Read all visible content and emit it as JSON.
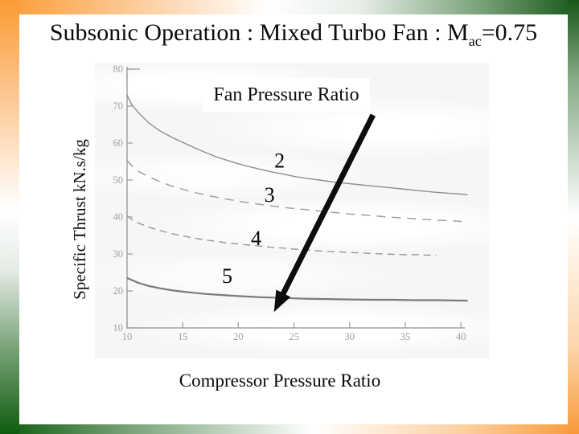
{
  "slide": {
    "title": {
      "text_before_sub": "Subsonic Operation : Mixed Turbo Fan : M",
      "subscript": "ac",
      "text_after_sub": "=0.75"
    },
    "theme": {
      "accent_orange": "#fa9b33",
      "accent_green": "#135c13",
      "scan_background": "#f6f6f6",
      "scan_ink": "#8e8e8e"
    }
  },
  "chart_data": {
    "type": "line",
    "series_family_label": "Fan Pressure Ratio",
    "xlabel": "Compressor Pressure Ratio",
    "ylabel": "Specific Thrust kN.s/kg",
    "xlim": [
      10,
      40
    ],
    "ylim": [
      10,
      80
    ],
    "x_ticks": [
      10,
      15,
      20,
      25,
      30,
      35,
      40
    ],
    "y_ticks": [
      10,
      20,
      30,
      40,
      50,
      60,
      70,
      80
    ],
    "grid": false,
    "legend_position": "labels-on-plot",
    "series": [
      {
        "name": "2",
        "line_style": "solid",
        "label_anchor": [
          23.7,
          55.3
        ],
        "points": [
          [
            10,
            73
          ],
          [
            10.4,
            70.5
          ],
          [
            11,
            68.3
          ],
          [
            12,
            65.3
          ],
          [
            13,
            63.2
          ],
          [
            14,
            61.6
          ],
          [
            15,
            60.2
          ],
          [
            16,
            58.8
          ],
          [
            17,
            57.5
          ],
          [
            18,
            56.3
          ],
          [
            19,
            55.3
          ],
          [
            20,
            54.4
          ],
          [
            21,
            53.6
          ],
          [
            22,
            52.9
          ],
          [
            23,
            52.2
          ],
          [
            24,
            51.6
          ],
          [
            25,
            51.0
          ],
          [
            26,
            50.5
          ],
          [
            27,
            50.1
          ],
          [
            28,
            49.7
          ],
          [
            29,
            49.3
          ],
          [
            30,
            49.0
          ],
          [
            31,
            48.7
          ],
          [
            32,
            48.4
          ],
          [
            33,
            48.1
          ],
          [
            34,
            47.8
          ],
          [
            35,
            47.5
          ],
          [
            36,
            47.2
          ],
          [
            37,
            46.9
          ],
          [
            38,
            46.6
          ],
          [
            39,
            46.4
          ],
          [
            40,
            46.2
          ],
          [
            40.6,
            46.0
          ]
        ]
      },
      {
        "name": "3",
        "line_style": "dashed",
        "label_anchor": [
          22.8,
          46.1
        ],
        "points": [
          [
            10,
            55.3
          ],
          [
            10.5,
            53.6
          ],
          [
            11,
            52.4
          ],
          [
            12,
            50.8
          ],
          [
            13,
            49.5
          ],
          [
            14,
            48.4
          ],
          [
            15,
            47.5
          ],
          [
            16,
            46.7
          ],
          [
            17,
            46.0
          ],
          [
            18,
            45.4
          ],
          [
            19,
            44.8
          ],
          [
            20,
            44.3
          ],
          [
            21,
            43.8
          ],
          [
            22,
            43.4
          ],
          [
            23,
            43.0
          ],
          [
            24,
            42.6
          ],
          [
            25,
            42.3
          ],
          [
            26,
            42.0
          ],
          [
            27,
            41.7
          ],
          [
            28,
            41.4
          ],
          [
            29,
            41.1
          ],
          [
            30,
            40.8
          ],
          [
            31,
            40.6
          ],
          [
            32,
            40.4
          ],
          [
            33,
            40.1
          ],
          [
            34,
            39.9
          ],
          [
            35,
            39.7
          ],
          [
            36,
            39.5
          ],
          [
            37,
            39.3
          ],
          [
            38,
            39.1
          ],
          [
            39,
            39.0
          ],
          [
            40,
            38.8
          ],
          [
            40.6,
            38.7
          ]
        ]
      },
      {
        "name": "4",
        "line_style": "dashed",
        "label_anchor": [
          21.6,
          34.3
        ],
        "points": [
          [
            10,
            40.3
          ],
          [
            10.5,
            39.2
          ],
          [
            11,
            38.4
          ],
          [
            12,
            37.2
          ],
          [
            13,
            36.3
          ],
          [
            14,
            35.5
          ],
          [
            15,
            34.9
          ],
          [
            16,
            34.3
          ],
          [
            17,
            33.8
          ],
          [
            18,
            33.4
          ],
          [
            19,
            33.0
          ],
          [
            20,
            32.7
          ],
          [
            21,
            32.4
          ],
          [
            22,
            32.1
          ],
          [
            23,
            31.8
          ],
          [
            24,
            31.6
          ],
          [
            25,
            31.3
          ],
          [
            26,
            31.1
          ],
          [
            27,
            30.9
          ],
          [
            28,
            30.7
          ],
          [
            29,
            30.6
          ],
          [
            30,
            30.4
          ],
          [
            31,
            30.3
          ],
          [
            32,
            30.1
          ],
          [
            33,
            30.0
          ],
          [
            34,
            29.9
          ],
          [
            35,
            29.8
          ],
          [
            36,
            29.8
          ],
          [
            37,
            29.7
          ],
          [
            37.8,
            29.7
          ]
        ]
      },
      {
        "name": "5",
        "line_style": "solid",
        "label_anchor": [
          19.0,
          24.1
        ],
        "points": [
          [
            10,
            23.5
          ],
          [
            11,
            22.2
          ],
          [
            12,
            21.3
          ],
          [
            13,
            20.7
          ],
          [
            14,
            20.2
          ],
          [
            15,
            19.8
          ],
          [
            16,
            19.5
          ],
          [
            17,
            19.2
          ],
          [
            18,
            19.0
          ],
          [
            19,
            18.8
          ],
          [
            20,
            18.6
          ],
          [
            22,
            18.3
          ],
          [
            24,
            18.1
          ],
          [
            26,
            17.9
          ],
          [
            28,
            17.8
          ],
          [
            30,
            17.7
          ],
          [
            32,
            17.6
          ],
          [
            34,
            17.6
          ],
          [
            36,
            17.5
          ],
          [
            38,
            17.5
          ],
          [
            40,
            17.4
          ],
          [
            40.6,
            17.4
          ]
        ]
      }
    ],
    "annotation_arrow": {
      "from": [
        32.1,
        67.6
      ],
      "to": [
        23.2,
        14.3
      ],
      "meaning": "direction of increasing fan pressure ratio"
    }
  }
}
